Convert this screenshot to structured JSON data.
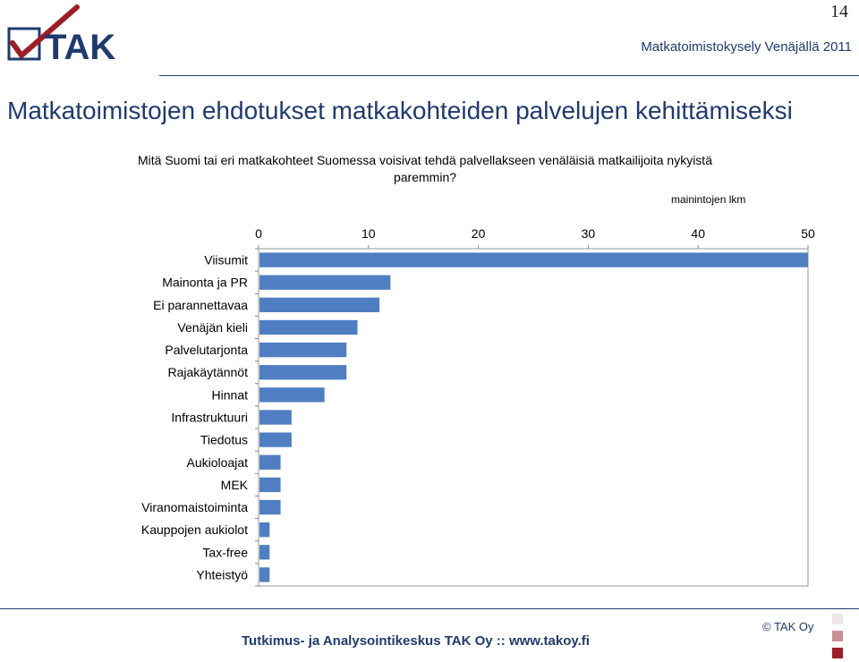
{
  "page_number": "14",
  "header": {
    "subtitle": "Matkatoimistokysely Venäjällä 2011",
    "logo_text": "TAK",
    "logo_icon": "checkmark-icon"
  },
  "title": "Matkatoimistojen ehdotukset matkakohteiden palvelujen kehittämiseksi",
  "question": "Mitä Suomi tai eri matkakohteet Suomessa voisivat tehdä palvellakseen venäläisiä matkailijoita nykyistä paremmin?",
  "colors": {
    "bar": "#4f7fc2",
    "brand": "#1f3b6e",
    "accent": "#9c1d27"
  },
  "chart_data": {
    "type": "bar",
    "orientation": "horizontal",
    "unit_label": "mainintojen lkm",
    "categories": [
      "Viisumit",
      "Mainonta ja PR",
      "Ei parannettavaa",
      "Venäjän kieli",
      "Palvelutarjonta",
      "Rajakäytännöt",
      "Hinnat",
      "Infrastruktuuri",
      "Tiedotus",
      "Aukioloajat",
      "MEK",
      "Viranomaistoiminta",
      "Kauppojen aukiolot",
      "Tax-free",
      "Yhteistyö"
    ],
    "values": [
      50,
      12,
      11,
      9,
      8,
      8,
      6,
      3,
      3,
      2,
      2,
      2,
      1,
      1,
      1
    ],
    "xlim": [
      0,
      50
    ],
    "ticks": [
      0,
      10,
      20,
      30,
      40,
      50
    ],
    "axis_position": "top",
    "grid": false,
    "legend": "none"
  },
  "footer": {
    "copyright": "© TAK Oy",
    "text": "Tutkimus- ja Analysointikeskus TAK Oy  ::  www.takoy.fi"
  }
}
